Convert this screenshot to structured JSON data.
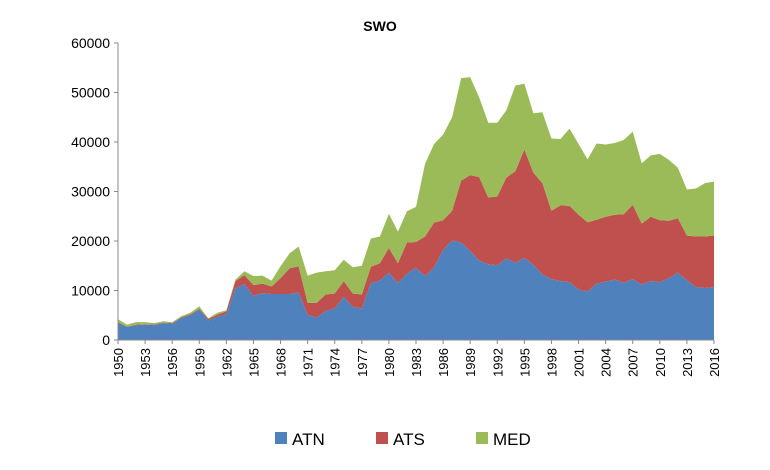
{
  "chart_data": {
    "type": "area",
    "stacked": true,
    "title": "SWO",
    "xlabel": "",
    "ylabel": "",
    "ylim": [
      0,
      60000
    ],
    "yticks": [
      0,
      10000,
      20000,
      30000,
      40000,
      50000,
      60000
    ],
    "ytick_labels": [
      "0",
      "10000",
      "20000",
      "30000",
      "40000",
      "50000",
      "60000"
    ],
    "xlim": [
      1950,
      2016
    ],
    "xticks": [
      1950,
      1953,
      1956,
      1959,
      1962,
      1965,
      1968,
      1971,
      1974,
      1977,
      1980,
      1983,
      1986,
      1989,
      1992,
      1995,
      1998,
      2001,
      2004,
      2007,
      2010,
      2013,
      2016
    ],
    "xtick_labels": [
      "1950",
      "1953",
      "1956",
      "1959",
      "1962",
      "1965",
      "1968",
      "1971",
      "1974",
      "1977",
      "1980",
      "1983",
      "1986",
      "1989",
      "1992",
      "1995",
      "1998",
      "2001",
      "2004",
      "2007",
      "2010",
      "2013",
      "2016"
    ],
    "grid": false,
    "legend_position": "bottom",
    "x": [
      1950,
      1951,
      1952,
      1953,
      1954,
      1955,
      1956,
      1957,
      1958,
      1959,
      1960,
      1961,
      1962,
      1963,
      1964,
      1965,
      1966,
      1967,
      1968,
      1969,
      1970,
      1971,
      1972,
      1973,
      1974,
      1975,
      1976,
      1977,
      1978,
      1979,
      1980,
      1981,
      1982,
      1983,
      1984,
      1985,
      1986,
      1987,
      1988,
      1989,
      1990,
      1991,
      1992,
      1993,
      1994,
      1995,
      1996,
      1997,
      1998,
      1999,
      2000,
      2001,
      2002,
      2003,
      2004,
      2005,
      2006,
      2007,
      2008,
      2009,
      2010,
      2011,
      2012,
      2013,
      2014,
      2015,
      2016
    ],
    "series": [
      {
        "name": "ATN",
        "color": "#4f81bd",
        "values": [
          3500,
          2600,
          3000,
          3100,
          3000,
          3400,
          3300,
          4500,
          5000,
          6100,
          4000,
          4700,
          5200,
          10500,
          11300,
          8900,
          9500,
          9300,
          9300,
          9300,
          9600,
          5100,
          4500,
          5900,
          6400,
          8700,
          6700,
          6400,
          11500,
          12000,
          13600,
          11500,
          13400,
          14600,
          12900,
          14700,
          18200,
          20100,
          19700,
          18000,
          16000,
          15300,
          15100,
          16500,
          15600,
          16600,
          15200,
          13200,
          12300,
          11900,
          11700,
          10200,
          9800,
          11400,
          11800,
          12200,
          11600,
          12300,
          11200,
          11900,
          11700,
          12500,
          13600,
          12100,
          10700,
          10500,
          10700
        ]
      },
      {
        "name": "ATS",
        "color": "#c0504d",
        "values": [
          100,
          100,
          100,
          100,
          100,
          100,
          100,
          100,
          200,
          200,
          300,
          400,
          600,
          1400,
          1800,
          2200,
          1900,
          1500,
          3200,
          5200,
          5300,
          2400,
          3000,
          3300,
          3000,
          3200,
          2700,
          2800,
          3300,
          3500,
          5000,
          4000,
          6300,
          5200,
          8000,
          9000,
          6000,
          6000,
          12500,
          15300,
          16900,
          13500,
          13900,
          16300,
          18500,
          21900,
          18600,
          18500,
          13800,
          15300,
          15400,
          15100,
          14000,
          12900,
          13100,
          13100,
          13800,
          15000,
          12300,
          13000,
          12500,
          11600,
          11000,
          9000,
          10200,
          10400,
          10400
        ]
      },
      {
        "name": "MED",
        "color": "#9bbb59",
        "values": [
          600,
          400,
          500,
          400,
          300,
          300,
          200,
          200,
          300,
          500,
          100,
          400,
          200,
          300,
          800,
          1800,
          1600,
          1200,
          2400,
          3000,
          4000,
          5500,
          6100,
          4700,
          4700,
          4300,
          5300,
          5800,
          5700,
          5400,
          6900,
          6400,
          6300,
          7100,
          14700,
          15900,
          17300,
          18900,
          20700,
          19800,
          16100,
          15100,
          14900,
          13600,
          17300,
          13300,
          12000,
          14300,
          14600,
          13400,
          15600,
          14300,
          12700,
          15400,
          14600,
          14500,
          15000,
          14800,
          12200,
          12400,
          13400,
          12300,
          10200,
          9300,
          9700,
          10800,
          10900
        ]
      }
    ]
  }
}
